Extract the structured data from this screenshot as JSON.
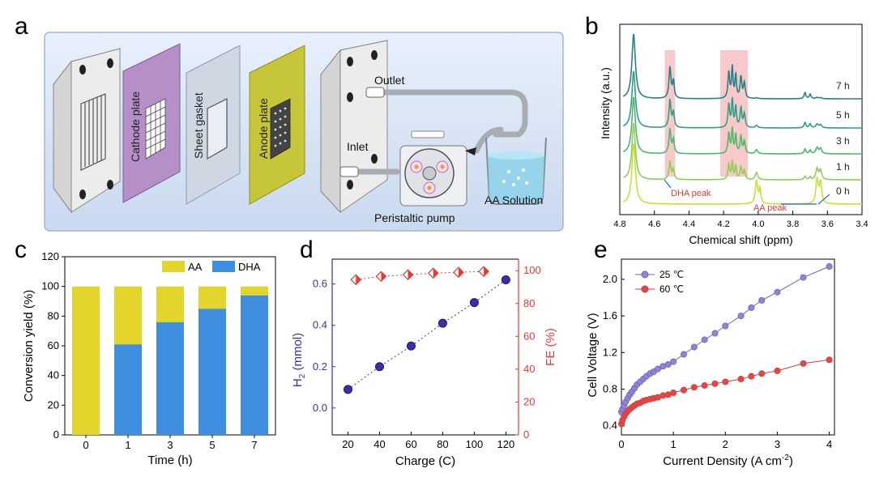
{
  "panels": {
    "a": "a",
    "b": "b",
    "c": "c",
    "d": "d",
    "e": "e"
  },
  "schematic": {
    "labels": {
      "cathode": "Cathode plate",
      "gasket": "Sheet gasket",
      "anode": "Anode plate",
      "outlet": "Outlet",
      "inlet": "Inlet",
      "pump": "Peristaltic pump",
      "solution": "AA Solution"
    },
    "colors": {
      "background": "#dde8f7",
      "cathode": "#b48fc8",
      "gasket": "#cfd7e3",
      "anode": "#c6c63a",
      "plate": "#e9e9e9"
    }
  },
  "chart_data": [
    {
      "id": "b",
      "type": "line",
      "xlabel": "Chemical shift (ppm)",
      "ylabel": "Intensity (a.u.)",
      "xlim": [
        4.8,
        3.4
      ],
      "xticks": [
        4.8,
        4.6,
        4.4,
        4.2,
        4.0,
        3.8,
        3.6,
        3.4
      ],
      "series": [
        {
          "name": "0 h",
          "color": "#c8df3a"
        },
        {
          "name": "1 h",
          "color": "#8fce57"
        },
        {
          "name": "3 h",
          "color": "#4fb86e"
        },
        {
          "name": "5 h",
          "color": "#2f9f86"
        },
        {
          "name": "7 h",
          "color": "#2a7f88"
        }
      ],
      "annotations": [
        {
          "text": "DHA peak",
          "color": "#e23b3b"
        },
        {
          "text": "AA peak",
          "color": "#e23b3b"
        }
      ],
      "highlight_ranges": [
        [
          4.54,
          4.48
        ],
        [
          4.22,
          4.06
        ]
      ]
    },
    {
      "id": "c",
      "type": "bar",
      "stacked": true,
      "xlabel": "Time (h)",
      "ylabel": "Conversion yield (%)",
      "ylim": [
        0,
        120
      ],
      "yticks": [
        0,
        20,
        40,
        60,
        80,
        100,
        120
      ],
      "categories": [
        "0",
        "1",
        "3",
        "5",
        "7"
      ],
      "series": [
        {
          "name": "DHA",
          "color": "#3f8ee0",
          "values": [
            0,
            61,
            76,
            85,
            94
          ]
        },
        {
          "name": "AA",
          "color": "#e4d52c",
          "values": [
            100,
            39,
            24,
            15,
            6
          ]
        }
      ]
    },
    {
      "id": "d",
      "type": "scatter",
      "xlabel": "Charge (C)",
      "ylabel_left": "H",
      "ylabel_left_sub": "2",
      "ylabel_left_unit": " (mmol)",
      "ylabel_right": "FE (%)",
      "xlim": [
        10,
        128
      ],
      "xticks": [
        20,
        40,
        60,
        80,
        100,
        120
      ],
      "ylim_left": [
        -0.13,
        0.72
      ],
      "yticks_left": [
        0.0,
        0.2,
        0.4,
        0.6
      ],
      "ylim_right": [
        0,
        107
      ],
      "yticks_right": [
        0,
        20,
        40,
        60,
        80,
        100
      ],
      "h2": {
        "color": "#3a2fa8",
        "x": [
          20,
          40,
          60,
          80,
          100,
          120
        ],
        "y": [
          0.09,
          0.2,
          0.3,
          0.41,
          0.51,
          0.62
        ]
      },
      "fe": {
        "color": "#e53935",
        "x": [
          25,
          41,
          58,
          74,
          90,
          106
        ],
        "y": [
          94.5,
          96.5,
          97.5,
          98.5,
          99,
          99.5
        ]
      }
    },
    {
      "id": "e",
      "type": "line",
      "xlabel": "Current Density (A cm",
      "xlabel_sup": "-2",
      "xlabel_end": ")",
      "ylabel": "Cell Voltage (V)",
      "xlim": [
        0,
        4.1
      ],
      "xticks": [
        0,
        1,
        2,
        3,
        4
      ],
      "ylim": [
        0.3,
        2.22
      ],
      "yticks": [
        0.4,
        0.8,
        1.2,
        1.6,
        2.0
      ],
      "series": [
        {
          "name": "25 ℃",
          "color": "#6a5fc4",
          "fill": "#8d86d6",
          "x": [
            0,
            0.02,
            0.05,
            0.08,
            0.12,
            0.16,
            0.2,
            0.25,
            0.3,
            0.36,
            0.42,
            0.48,
            0.55,
            0.62,
            0.7,
            0.8,
            0.9,
            1.0,
            1.2,
            1.4,
            1.6,
            1.8,
            2.0,
            2.3,
            2.5,
            2.7,
            3.0,
            3.5,
            4.0
          ],
          "y": [
            0.55,
            0.58,
            0.62,
            0.66,
            0.7,
            0.74,
            0.77,
            0.81,
            0.85,
            0.88,
            0.91,
            0.94,
            0.97,
            0.99,
            1.02,
            1.05,
            1.07,
            1.1,
            1.18,
            1.26,
            1.34,
            1.41,
            1.49,
            1.6,
            1.69,
            1.77,
            1.86,
            2.02,
            2.14
          ]
        },
        {
          "name": "60 ℃",
          "color": "#d63a3a",
          "fill": "#e04848",
          "x": [
            0,
            0.02,
            0.05,
            0.08,
            0.12,
            0.16,
            0.2,
            0.25,
            0.3,
            0.36,
            0.42,
            0.48,
            0.55,
            0.62,
            0.7,
            0.8,
            0.9,
            1.0,
            1.2,
            1.4,
            1.6,
            1.8,
            2.0,
            2.3,
            2.5,
            2.7,
            3.0,
            3.5,
            4.0
          ],
          "y": [
            0.42,
            0.46,
            0.5,
            0.53,
            0.56,
            0.58,
            0.6,
            0.62,
            0.64,
            0.65,
            0.67,
            0.68,
            0.69,
            0.7,
            0.71,
            0.73,
            0.74,
            0.76,
            0.79,
            0.82,
            0.84,
            0.86,
            0.88,
            0.91,
            0.94,
            0.97,
            1.0,
            1.08,
            1.12
          ]
        }
      ]
    }
  ]
}
